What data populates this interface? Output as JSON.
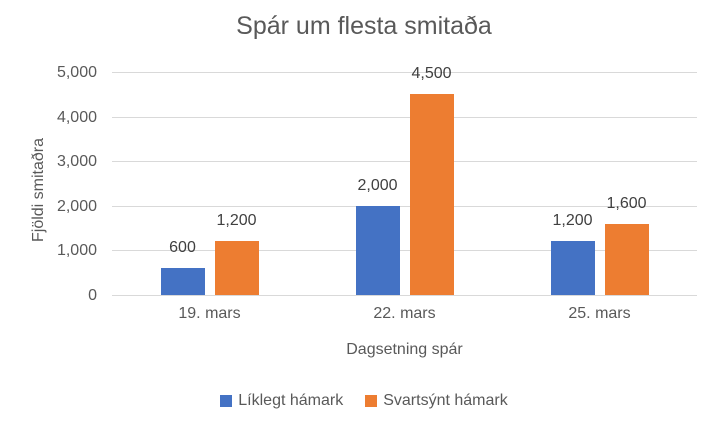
{
  "chart_data": {
    "type": "bar",
    "title": "Spár um flesta smitaða",
    "xlabel": "Dagsetning spár",
    "ylabel": "Fjöldi smitaðra",
    "categories": [
      "19. mars",
      "22. mars",
      "25. mars"
    ],
    "series": [
      {
        "name": "Líklegt hámark",
        "color": "#4472C4",
        "values": [
          600,
          2000,
          1200
        ],
        "labels": [
          "600",
          "2,000",
          "1,200"
        ]
      },
      {
        "name": "Svartsýnt hámark",
        "color": "#ED7D31",
        "values": [
          1200,
          4500,
          1600
        ],
        "labels": [
          "1,200",
          "4,500",
          "1,600"
        ]
      }
    ],
    "ylim": [
      0,
      5000
    ],
    "yticks": [
      0,
      1000,
      2000,
      3000,
      4000,
      5000
    ],
    "ytick_labels": [
      "0",
      "1,000",
      "2,000",
      "3,000",
      "4,000",
      "5,000"
    ],
    "grid": true,
    "legend_position": "bottom"
  },
  "colors": {
    "bar_blue": "#4472C4",
    "bar_orange": "#ED7D31",
    "gridline": "#D9D9D9",
    "axis_line": "#D9D9D9",
    "title_text": "#595959",
    "axis_text": "#595959",
    "data_label_text": "#404040",
    "background": "#FFFFFF"
  }
}
